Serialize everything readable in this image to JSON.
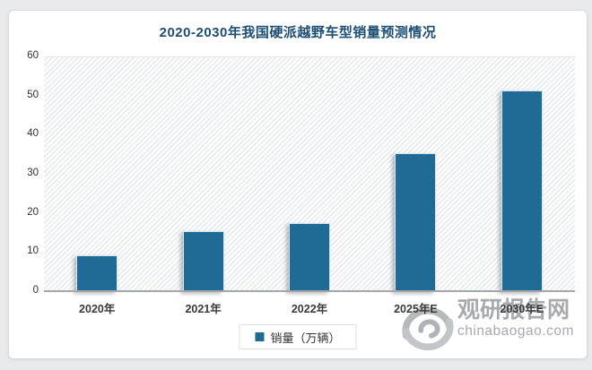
{
  "page": {
    "background_color": "#e9eaec",
    "card_background": "#ffffff",
    "card_border_color": "#d9dcde"
  },
  "chart_data": {
    "type": "bar",
    "title": "2020-2030年我国硬派越野车型销量预测情况",
    "title_color": "#1d4e74",
    "categories": [
      "2020年",
      "2021年",
      "2022年",
      "2025年E",
      "2030年E"
    ],
    "values": [
      9.5,
      15.5,
      17.7,
      35.5,
      51.5
    ],
    "series_name": "销量（万辆）",
    "xlabel": "",
    "ylabel": "",
    "ylim": [
      0,
      60
    ],
    "yticks": [
      0,
      10,
      20,
      30,
      40,
      50,
      60
    ],
    "grid": false,
    "legend_position": "bottom",
    "bar_color": "#1f6b96",
    "bar_border_color": "#d2e6f2",
    "axis_line_color": "#a4a8ab",
    "plot_hatch_colors": [
      "#ffffff",
      "#ebedee"
    ]
  },
  "legend": {
    "label": "销量（万辆）",
    "swatch_color": "#1f6b96"
  },
  "watermark": {
    "logo": "swirl-logo",
    "site_name": "观研报告网",
    "site_url": "chinabaogao.com",
    "color": "#a7abae"
  }
}
